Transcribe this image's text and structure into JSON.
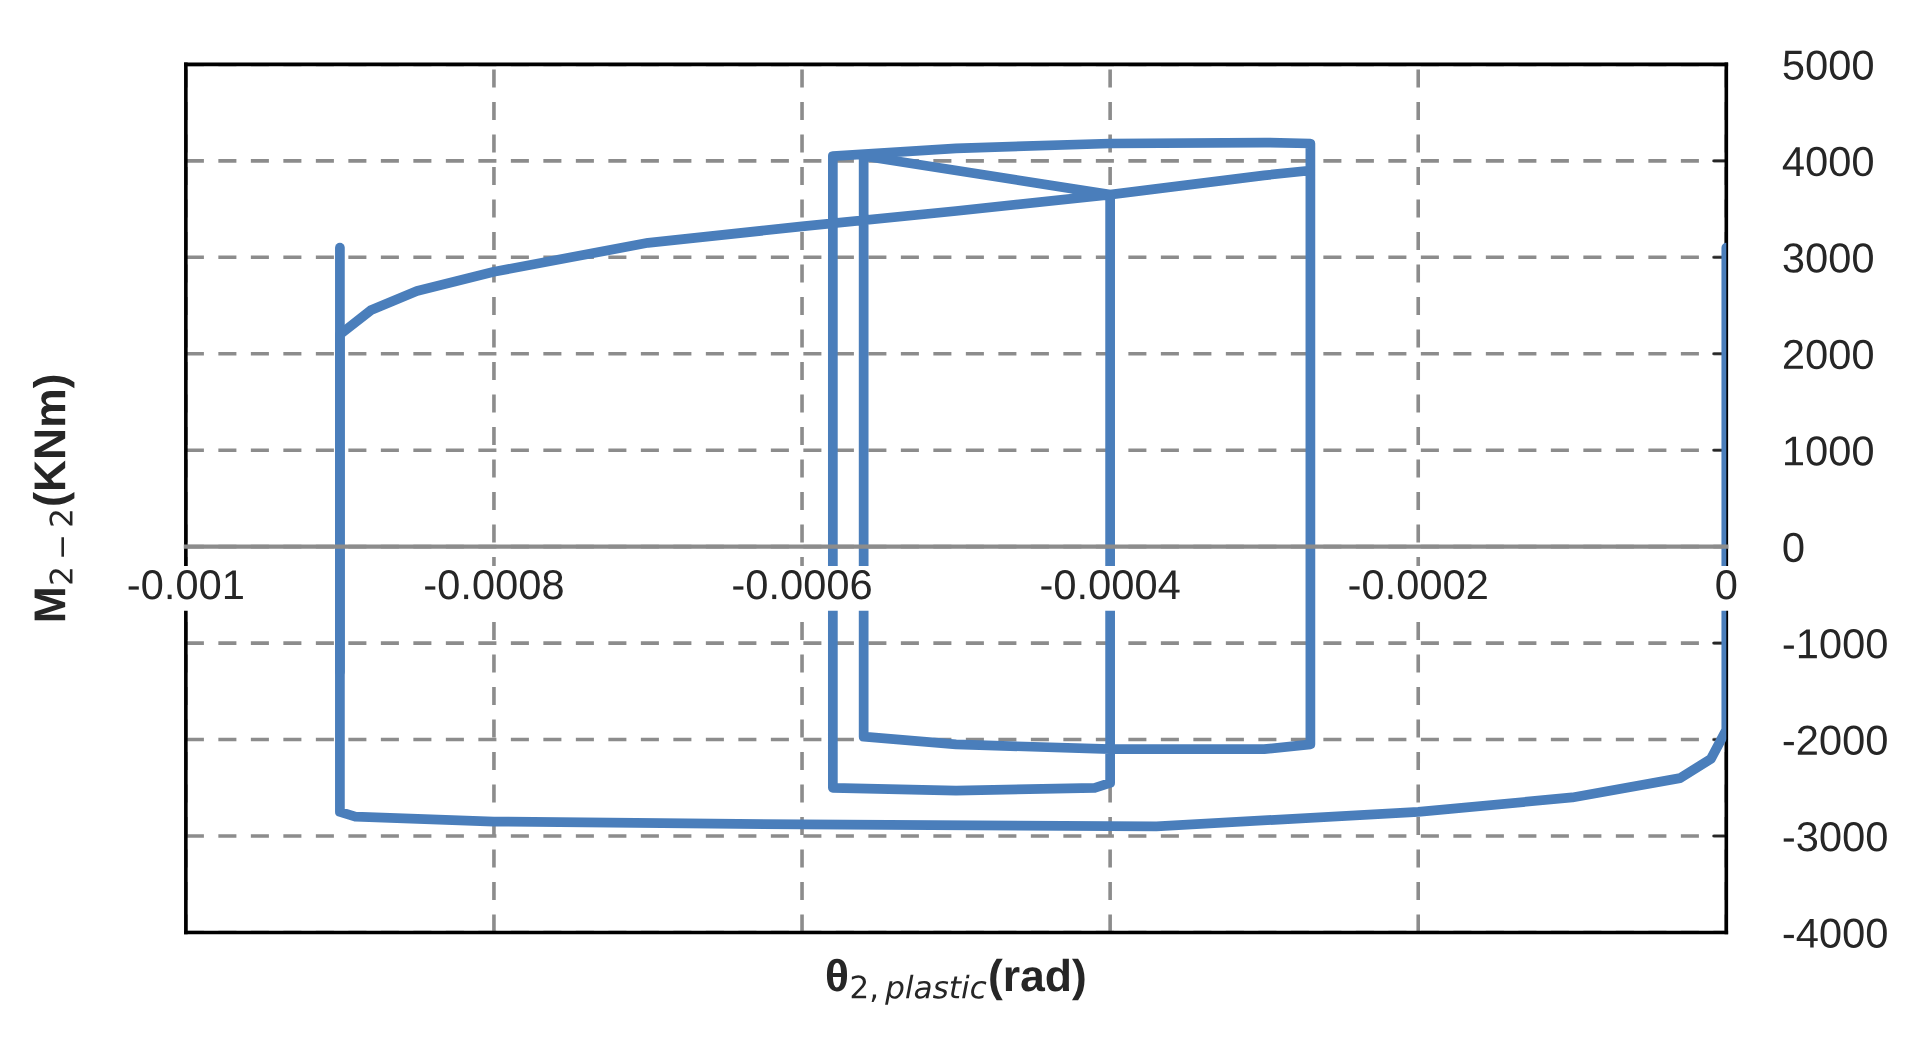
{
  "chart_data": {
    "type": "line",
    "xlabel": "θ$_{2,plastic}$(rad)",
    "ylabel": "M$_{2−2}$(KNm)",
    "xlim": [
      -0.001,
      0
    ],
    "xticks": [
      -0.001,
      -0.0008,
      -0.0006,
      -0.0004,
      -0.0002,
      0
    ],
    "ylim": [
      -4000,
      5000
    ],
    "yticks": [
      -4000,
      -3000,
      -2000,
      -1000,
      0,
      1000,
      2000,
      3000,
      4000,
      5000
    ],
    "grid": true,
    "legend": false,
    "marker": "none",
    "line_style": "solid",
    "series": [
      {
        "color": "#4a7ebb",
        "x": [
          0,
          0,
          -1e-05,
          -3e-05,
          -0.0001,
          -0.0002,
          -0.00037,
          -0.0006,
          -0.0008,
          -0.00089,
          -0.0009,
          -0.0009,
          -0.00088,
          -0.00085,
          -0.0008,
          -0.00075,
          -0.0007,
          -0.0006,
          -0.0005,
          -0.0004,
          -0.0003,
          -0.00027,
          -0.00027,
          -0.0003,
          -0.0004,
          -0.0005,
          -0.00058,
          -0.00058,
          -0.0005,
          -0.00041,
          -0.0004,
          -0.0004,
          -0.00056,
          -0.00056,
          -0.0005,
          -0.0004,
          -0.0003,
          -0.00027,
          -0.00027
        ],
        "values": [
          3100,
          -1900,
          -2200,
          -2400,
          -2600,
          -2750,
          -2900,
          -2880,
          -2850,
          -2800,
          -2750,
          2200,
          2450,
          2650,
          2850,
          3000,
          3150,
          3320,
          3480,
          3650,
          3850,
          3900,
          4180,
          4190,
          4180,
          4130,
          4050,
          -2500,
          -2530,
          -2500,
          -2450,
          3650,
          4050,
          -1970,
          -2050,
          -2100,
          -2100,
          -2050,
          3900
        ]
      },
      {
        "color": "#4a7ebb",
        "x": [
          -0.0009,
          -0.0009
        ],
        "values": [
          3100,
          -1300
        ]
      }
    ]
  }
}
